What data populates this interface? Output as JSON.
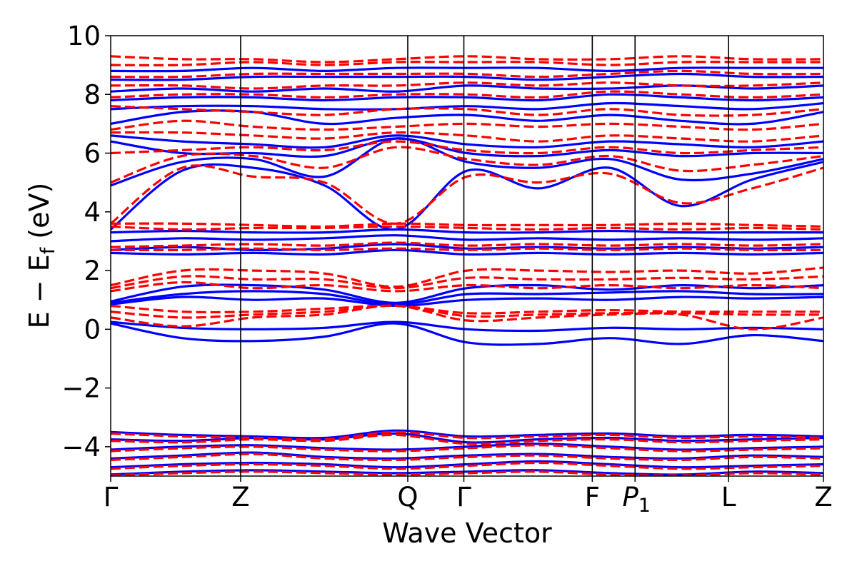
{
  "chart_data": {
    "type": "line",
    "title": "",
    "xlabel": "Wave Vector",
    "ylabel_main": "E − E",
    "ylabel_sub": "f",
    "ylabel_unit": " (eV)",
    "ylim": [
      -5,
      10
    ],
    "yticks": [
      -4,
      -2,
      0,
      2,
      4,
      6,
      8,
      10
    ],
    "ytick_labels": [
      "−4",
      "−2",
      "0",
      "2",
      "4",
      "6",
      "8",
      "10"
    ],
    "xlim": [
      0,
      1
    ],
    "kpoints": [
      {
        "label": "Γ",
        "sub": "",
        "pos": 0.0,
        "line": false
      },
      {
        "label": "Z",
        "sub": "",
        "pos": 0.1823,
        "line": true
      },
      {
        "label": "Q",
        "sub": "",
        "pos": 0.4168,
        "line": true
      },
      {
        "label": "Γ",
        "sub": "",
        "pos": 0.4955,
        "line": true
      },
      {
        "label": "F",
        "sub": "",
        "pos": 0.6757,
        "line": true
      },
      {
        "label": "P",
        "sub": "1",
        "pos": 0.7357,
        "line": true
      },
      {
        "label": "L",
        "sub": "",
        "pos": 0.8669,
        "line": true
      },
      {
        "label": "Z",
        "sub": "",
        "pos": 1.0,
        "line": false
      }
    ],
    "grid": false,
    "legend": "none",
    "series": [
      {
        "color": "#0000ff",
        "style": "solid",
        "bands": [
          [
            -4.95,
            -4.85,
            -4.8,
            -4.85,
            -4.9,
            -4.85,
            -4.8,
            -4.9,
            -4.95,
            -4.85,
            -4.9
          ],
          [
            -4.7,
            -4.6,
            -4.55,
            -4.6,
            -4.7,
            -4.6,
            -4.5,
            -4.6,
            -4.7,
            -4.65,
            -4.6
          ],
          [
            -4.4,
            -4.3,
            -4.2,
            -4.35,
            -4.4,
            -4.3,
            -4.25,
            -4.35,
            -4.4,
            -4.3,
            -4.35
          ],
          [
            -4.1,
            -4.0,
            -3.95,
            -4.05,
            -4.1,
            -4.0,
            -3.9,
            -4.0,
            -4.1,
            -4.05,
            -4.0
          ],
          [
            -3.75,
            -3.8,
            -3.7,
            -3.75,
            -3.55,
            -3.85,
            -3.75,
            -3.7,
            -3.8,
            -3.75,
            -3.7
          ],
          [
            -3.5,
            -3.6,
            -3.65,
            -3.7,
            -3.45,
            -3.65,
            -3.6,
            -3.55,
            -3.65,
            -3.6,
            -3.65
          ],
          [
            0.2,
            -0.3,
            -0.4,
            -0.25,
            0.2,
            -0.45,
            -0.5,
            -0.3,
            -0.5,
            -0.2,
            -0.4
          ],
          [
            0.25,
            0.05,
            0.0,
            0.05,
            0.25,
            0.0,
            -0.05,
            0.05,
            0.0,
            0.05,
            0.0
          ],
          [
            0.85,
            1.1,
            1.0,
            1.05,
            0.8,
            1.0,
            1.05,
            1.0,
            1.1,
            1.05,
            1.1
          ],
          [
            0.9,
            1.2,
            1.3,
            1.2,
            0.85,
            1.2,
            1.2,
            1.25,
            1.3,
            1.2,
            1.2
          ],
          [
            0.95,
            1.45,
            1.5,
            1.35,
            0.9,
            1.4,
            1.5,
            1.35,
            1.5,
            1.4,
            1.5
          ],
          [
            2.6,
            2.55,
            2.6,
            2.55,
            2.7,
            2.55,
            2.6,
            2.55,
            2.6,
            2.55,
            2.6
          ],
          [
            2.7,
            2.8,
            2.7,
            2.75,
            2.9,
            2.75,
            2.8,
            2.75,
            2.8,
            2.75,
            2.8
          ],
          [
            3.0,
            3.1,
            3.05,
            3.1,
            3.2,
            3.05,
            3.1,
            3.05,
            3.1,
            3.05,
            3.1
          ],
          [
            3.3,
            3.35,
            3.3,
            3.3,
            3.4,
            3.3,
            3.3,
            3.35,
            3.3,
            3.3,
            3.3
          ],
          [
            3.4,
            5.4,
            5.5,
            4.9,
            3.4,
            5.4,
            4.8,
            5.5,
            4.2,
            5.1,
            5.7
          ],
          [
            4.9,
            5.7,
            5.8,
            5.2,
            6.5,
            5.7,
            5.5,
            5.8,
            5.1,
            5.3,
            5.8
          ],
          [
            6.4,
            6.0,
            6.0,
            5.9,
            6.5,
            6.0,
            5.9,
            6.1,
            5.9,
            6.0,
            6.0
          ],
          [
            6.6,
            6.4,
            6.3,
            6.2,
            6.6,
            6.3,
            6.2,
            6.4,
            6.3,
            6.2,
            6.4
          ],
          [
            7.0,
            7.4,
            7.4,
            7.0,
            7.2,
            7.3,
            7.1,
            7.3,
            7.1,
            7.0,
            7.4
          ],
          [
            7.5,
            7.6,
            7.6,
            7.5,
            7.5,
            7.6,
            7.5,
            7.7,
            7.6,
            7.5,
            7.7
          ],
          [
            7.8,
            7.9,
            7.9,
            7.8,
            7.9,
            7.9,
            7.8,
            8.0,
            7.9,
            7.8,
            7.9
          ],
          [
            8.1,
            8.2,
            8.1,
            8.2,
            8.1,
            8.3,
            8.2,
            8.2,
            8.3,
            8.2,
            8.3
          ],
          [
            8.5,
            8.5,
            8.6,
            8.6,
            8.6,
            8.6,
            8.5,
            8.6,
            8.7,
            8.6,
            8.6
          ],
          [
            8.8,
            8.8,
            8.9,
            8.8,
            8.9,
            8.9,
            8.9,
            8.8,
            8.9,
            8.9,
            8.9
          ]
        ]
      },
      {
        "color": "#ff0000",
        "style": "dashed",
        "bands": [
          [
            -4.98,
            -4.9,
            -4.85,
            -4.9,
            -4.95,
            -4.9,
            -4.85,
            -4.95,
            -4.98,
            -4.9,
            -4.95
          ],
          [
            -4.75,
            -4.65,
            -4.6,
            -4.65,
            -4.75,
            -4.65,
            -4.55,
            -4.65,
            -4.75,
            -4.7,
            -4.65
          ],
          [
            -4.45,
            -4.35,
            -4.25,
            -4.4,
            -4.45,
            -4.35,
            -4.3,
            -4.4,
            -4.45,
            -4.35,
            -4.4
          ],
          [
            -4.15,
            -4.05,
            -4.0,
            -4.1,
            -4.15,
            -4.05,
            -3.95,
            -4.05,
            -4.15,
            -4.1,
            -4.05
          ],
          [
            -3.8,
            -3.85,
            -3.75,
            -3.8,
            -3.6,
            -3.9,
            -3.8,
            -3.75,
            -3.85,
            -3.8,
            -3.75
          ],
          [
            -3.55,
            -3.65,
            -3.7,
            -3.75,
            -3.5,
            -3.7,
            -3.65,
            -3.6,
            -3.7,
            -3.65,
            -3.7
          ],
          [
            0.4,
            0.1,
            0.4,
            0.5,
            0.8,
            0.3,
            0.4,
            0.5,
            0.5,
            0.0,
            0.4
          ],
          [
            0.6,
            0.4,
            0.5,
            0.6,
            0.8,
            0.45,
            0.5,
            0.55,
            0.55,
            0.5,
            0.5
          ],
          [
            0.8,
            0.6,
            0.6,
            0.7,
            0.8,
            0.55,
            0.6,
            0.65,
            0.6,
            0.6,
            0.6
          ],
          [
            1.3,
            1.6,
            1.4,
            1.5,
            1.3,
            1.5,
            1.4,
            1.5,
            1.4,
            1.5,
            1.4
          ],
          [
            1.4,
            1.8,
            1.7,
            1.7,
            1.4,
            1.75,
            1.7,
            1.7,
            1.75,
            1.7,
            1.8
          ],
          [
            1.5,
            2.0,
            2.0,
            1.9,
            1.45,
            2.0,
            2.0,
            1.95,
            2.0,
            1.9,
            2.1
          ],
          [
            2.7,
            2.7,
            2.75,
            2.7,
            2.75,
            2.7,
            2.75,
            2.7,
            2.75,
            2.7,
            2.7
          ],
          [
            2.8,
            2.85,
            2.9,
            2.85,
            2.95,
            2.85,
            2.9,
            2.85,
            2.9,
            2.85,
            2.9
          ],
          [
            3.5,
            3.4,
            3.45,
            3.45,
            3.5,
            3.45,
            3.4,
            3.45,
            3.4,
            3.45,
            3.4
          ],
          [
            3.6,
            3.6,
            3.55,
            3.5,
            3.6,
            3.55,
            3.55,
            3.55,
            3.6,
            3.55,
            3.5
          ],
          [
            3.6,
            5.5,
            5.2,
            5.0,
            3.6,
            5.2,
            5.0,
            5.3,
            4.3,
            4.8,
            5.5
          ],
          [
            5.0,
            5.9,
            5.9,
            5.5,
            6.2,
            5.8,
            5.6,
            5.9,
            5.4,
            5.6,
            5.9
          ],
          [
            6.0,
            6.1,
            6.2,
            6.1,
            6.4,
            6.1,
            6.0,
            6.2,
            6.0,
            6.1,
            6.2
          ],
          [
            6.7,
            6.7,
            6.6,
            6.5,
            6.7,
            6.6,
            6.4,
            6.6,
            6.5,
            6.4,
            6.6
          ],
          [
            6.8,
            7.1,
            6.9,
            6.8,
            6.9,
            7.0,
            6.9,
            7.0,
            6.9,
            6.8,
            7.0
          ],
          [
            7.6,
            7.5,
            7.4,
            7.3,
            7.5,
            7.5,
            7.3,
            7.5,
            7.3,
            7.3,
            7.5
          ],
          [
            7.9,
            8.0,
            8.0,
            7.9,
            8.0,
            8.0,
            7.9,
            8.1,
            8.0,
            7.9,
            8.0
          ],
          [
            8.3,
            8.3,
            8.2,
            8.3,
            8.3,
            8.4,
            8.3,
            8.4,
            8.3,
            8.3,
            8.4
          ],
          [
            8.6,
            8.6,
            8.7,
            8.7,
            8.7,
            8.7,
            8.6,
            8.7,
            8.8,
            8.7,
            8.7
          ],
          [
            9.0,
            9.0,
            9.1,
            9.0,
            9.1,
            9.1,
            9.1,
            9.0,
            9.1,
            9.1,
            9.1
          ],
          [
            9.3,
            9.2,
            9.2,
            9.1,
            9.2,
            9.3,
            9.2,
            9.2,
            9.3,
            9.2,
            9.2
          ]
        ]
      }
    ]
  }
}
